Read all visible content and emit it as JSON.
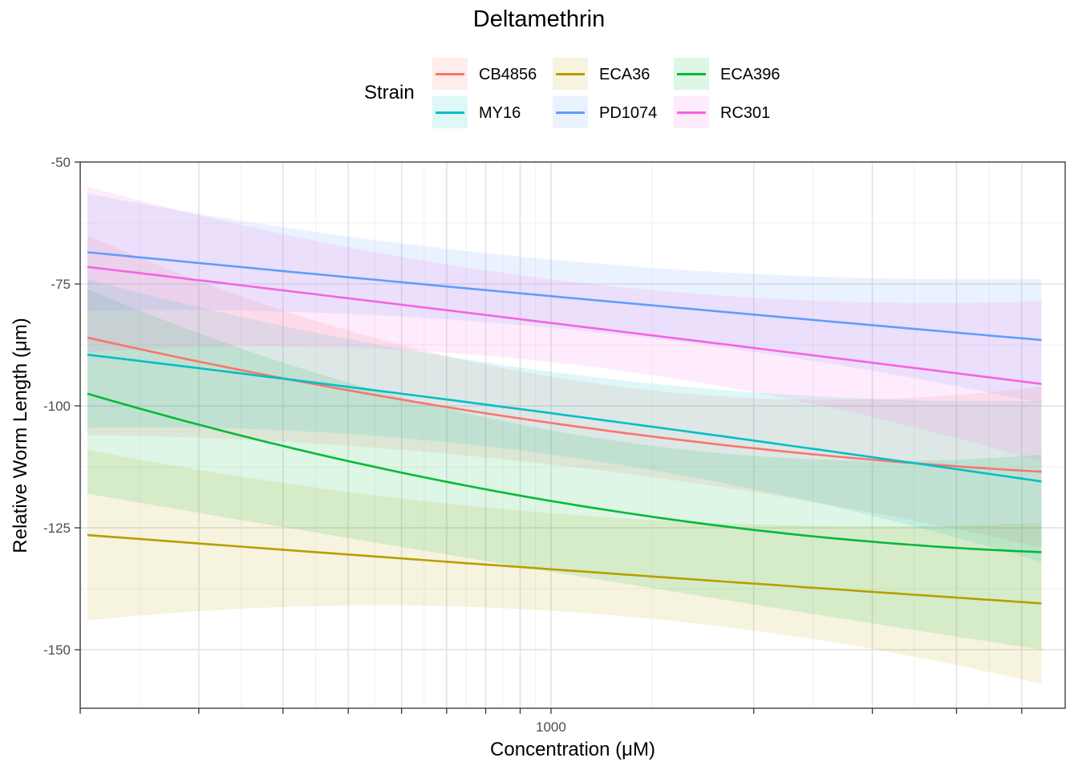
{
  "chart_data": {
    "type": "line",
    "title": "Deltamethrin",
    "xlabel": "Concentration (μM)",
    "ylabel": "Relative Worm Length (μm)",
    "x_scale": "log10",
    "xlim": [
      200,
      5800
    ],
    "ylim": [
      -162,
      -50
    ],
    "y_ticks": [
      -50,
      -75,
      -100,
      -125,
      -150
    ],
    "x_tick_labels": [
      {
        "value": 1000,
        "label": "1000"
      }
    ],
    "legend_title": "Strain",
    "legend_position": "top",
    "x_start": 205,
    "x_end": 5350,
    "series": [
      {
        "name": "CB4856",
        "color": "#F8766D",
        "x": [
          205,
          1000,
          5350
        ],
        "y": [
          -86,
          -103.5,
          -113.5
        ],
        "ci_lower": [
          -106,
          -112,
          -129
        ],
        "ci_upper": [
          -65,
          -94,
          -96
        ]
      },
      {
        "name": "ECA36",
        "color": "#B79F00",
        "x": [
          205,
          1000,
          5350
        ],
        "y": [
          -126.5,
          -133.5,
          -140.5
        ],
        "ci_lower": [
          -144,
          -142,
          -157
        ],
        "ci_upper": [
          -109,
          -122,
          -124
        ]
      },
      {
        "name": "ECA396",
        "color": "#00BA38",
        "x": [
          205,
          1000,
          5350
        ],
        "y": [
          -97.5,
          -119.5,
          -130
        ],
        "ci_lower": [
          -118,
          -134,
          -150
        ],
        "ci_upper": [
          -76,
          -105,
          -110
        ]
      },
      {
        "name": "MY16",
        "color": "#00BFC4",
        "x": [
          205,
          1000,
          5350
        ],
        "y": [
          -89.5,
          -101.5,
          -115.5
        ],
        "ci_lower": [
          -104.5,
          -110,
          -132
        ],
        "ci_upper": [
          -74,
          -93,
          -99
        ]
      },
      {
        "name": "PD1074",
        "color": "#619CFF",
        "x": [
          205,
          1000,
          5350
        ],
        "y": [
          -68.5,
          -77.5,
          -86.5
        ],
        "ci_lower": [
          -80.5,
          -84,
          -99.5
        ],
        "ci_upper": [
          -56.5,
          -70,
          -74
        ]
      },
      {
        "name": "RC301",
        "color": "#F564E3",
        "x": [
          205,
          1000,
          5350
        ],
        "y": [
          -71.5,
          -83,
          -95.5
        ],
        "ci_lower": [
          -89,
          -91,
          -111.5
        ],
        "ci_upper": [
          -55,
          -74,
          -78.5
        ]
      }
    ]
  }
}
